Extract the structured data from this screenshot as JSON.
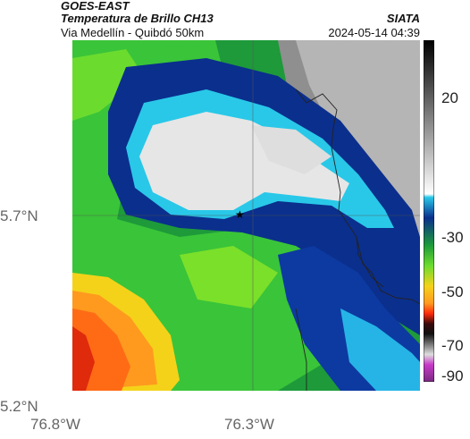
{
  "header": {
    "satellite": "GOES-EAST",
    "product": "Temperatura de Brillo CH13",
    "region": "Via Medellín - Quibdó 50km",
    "source": "SIATA",
    "datetime": "2024-05-14 04:39"
  },
  "axes": {
    "lat_labels": [
      "5.7°N",
      "5.2°N"
    ],
    "lon_labels": [
      "76.8°W",
      "76.3°W"
    ]
  },
  "colorbar": {
    "tick_labels": [
      "20",
      "-30",
      "-50",
      "-70",
      "-90"
    ]
  },
  "marker": {
    "symbol": "★"
  },
  "colors": {
    "cloud_cold": "#e6e6e6",
    "cloud_edge": "#0a2f8c",
    "cyan": "#29c7e8",
    "green": "#3bd32f",
    "warm": "#ff9a1f"
  }
}
